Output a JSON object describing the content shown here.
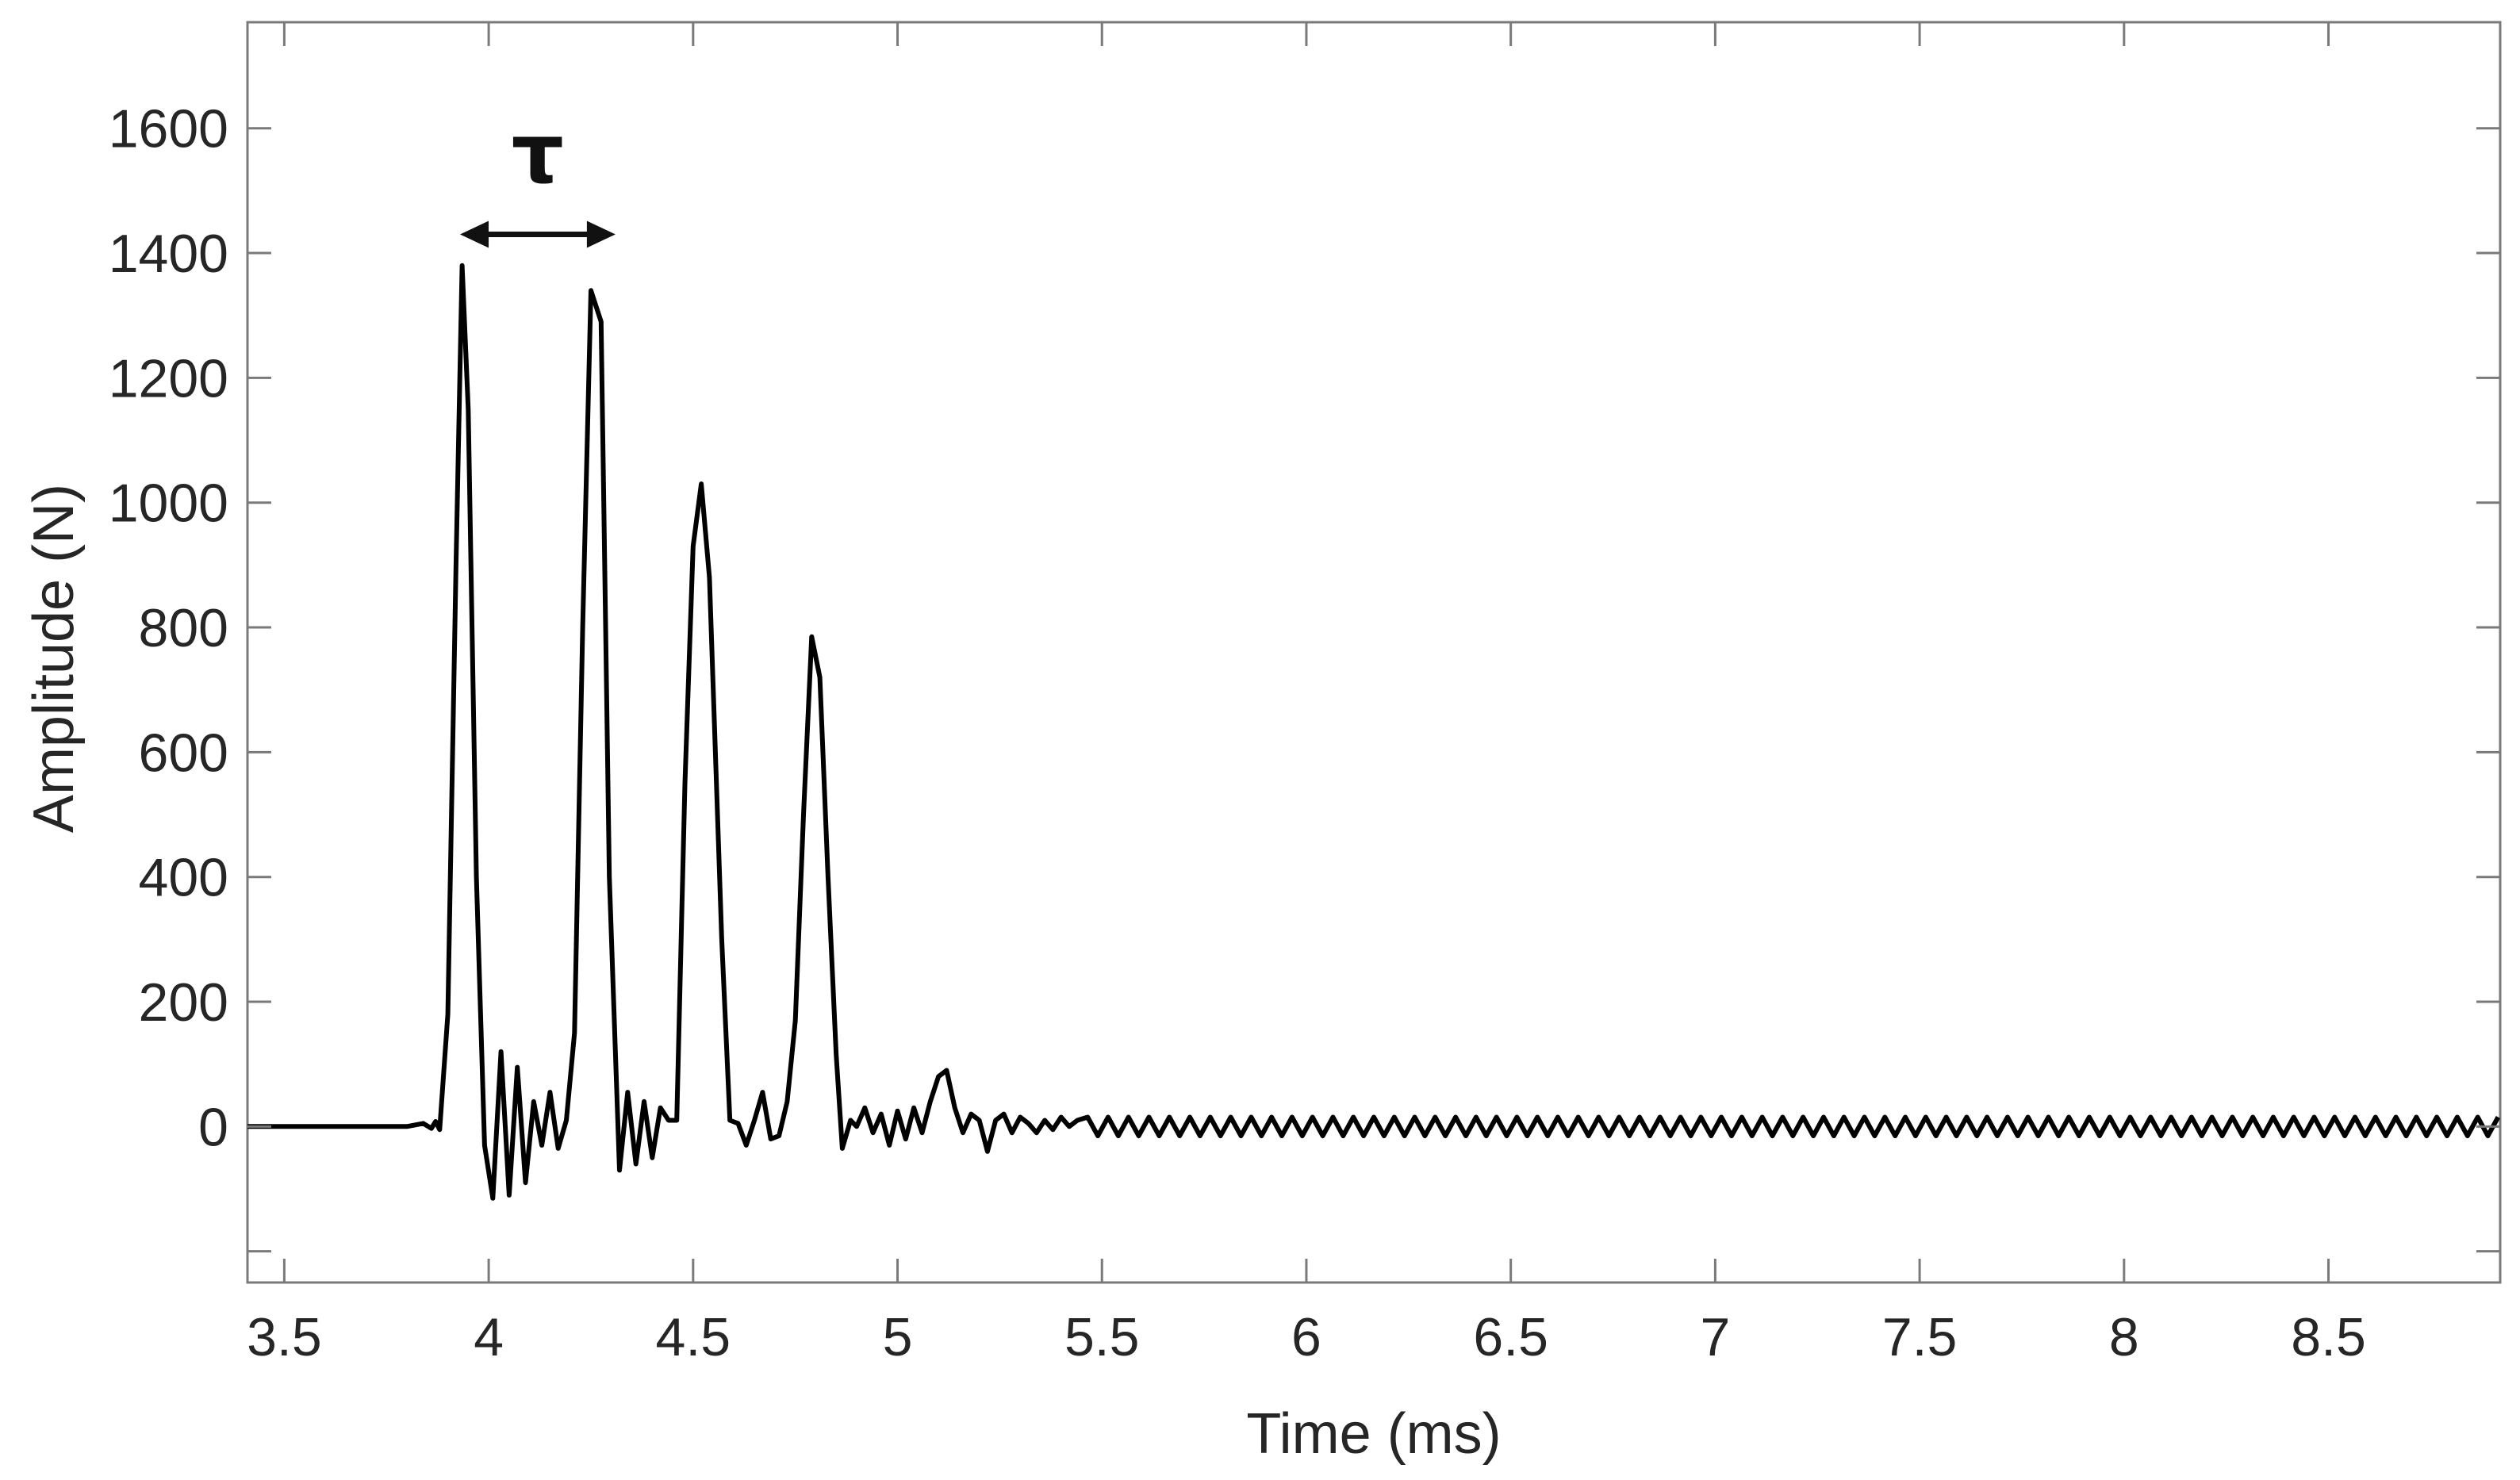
{
  "chart_data": {
    "type": "line",
    "title": "",
    "xlabel": "Time (ms)",
    "ylabel": "Amplitude (N)",
    "xlim": [
      3.41,
      8.92
    ],
    "ylim": [
      -250,
      1770
    ],
    "xticks": [
      3.5,
      4,
      4.5,
      5,
      5.5,
      6,
      6.5,
      7,
      7.5,
      8,
      8.5
    ],
    "xtick_labels": [
      "3.5",
      "4",
      "4.5",
      "5",
      "5.5",
      "6",
      "6.5",
      "7",
      "7.5",
      "8",
      "8.5"
    ],
    "yticks": [
      -200,
      0,
      200,
      400,
      600,
      800,
      1000,
      1200,
      1400,
      1600
    ],
    "ytick_labels": [
      "",
      "0",
      "200",
      "400",
      "600",
      "800",
      "1000",
      "1200",
      "1400",
      "1600"
    ],
    "grid": false,
    "legend": "none",
    "line_color": "#000000",
    "series": [
      {
        "x": [
          3.41,
          3.5,
          3.6,
          3.7,
          3.8,
          3.84,
          3.86,
          3.87,
          3.88,
          3.9,
          3.92,
          3.935,
          3.95,
          3.97,
          3.99,
          4.01,
          4.03,
          4.05,
          4.07,
          4.09,
          4.11,
          4.13,
          4.15,
          4.17,
          4.19,
          4.21,
          4.23,
          4.25,
          4.275,
          4.295,
          4.32,
          4.34,
          4.36,
          4.38,
          4.4,
          4.42,
          4.44,
          4.46,
          4.48,
          4.5,
          4.52,
          4.54,
          4.57,
          4.59,
          4.61,
          4.63,
          4.65,
          4.67,
          4.69,
          4.71,
          4.73,
          4.75,
          4.77,
          4.79,
          4.81,
          4.83,
          4.85,
          4.865,
          4.885,
          4.9,
          4.92,
          4.94,
          4.96,
          4.98,
          5.0,
          5.02,
          5.04,
          5.06,
          5.08,
          5.1,
          5.12,
          5.14,
          5.16,
          5.18,
          5.2,
          5.22,
          5.24,
          5.26,
          5.28,
          5.3,
          5.32,
          5.34,
          5.36,
          5.38,
          5.4,
          5.42,
          5.44
        ],
        "y": [
          0,
          0,
          0,
          0,
          0,
          5,
          -3,
          8,
          -5,
          180,
          900,
          1380,
          1150,
          400,
          -30,
          -115,
          120,
          -110,
          95,
          -90,
          40,
          -30,
          55,
          -35,
          10,
          150,
          800,
          1340,
          1290,
          400,
          -70,
          55,
          -60,
          40,
          -50,
          30,
          10,
          10,
          550,
          930,
          1030,
          880,
          300,
          10,
          5,
          -30,
          10,
          55,
          -20,
          -15,
          40,
          170,
          500,
          785,
          720,
          400,
          115,
          -35,
          10,
          0,
          30,
          -10,
          20,
          -30,
          25,
          -20,
          30,
          -10,
          40,
          80,
          90,
          30,
          -10,
          20,
          10,
          -40,
          10,
          20,
          -10,
          15,
          5,
          -10,
          10,
          -5,
          15,
          0,
          10
        ],
        "oscillation_tail": {
          "x_start": 5.44,
          "x_end": 8.92,
          "period_ms": 0.05,
          "amplitude": 15
        }
      }
    ],
    "annotations": [
      {
        "text": "τ",
        "type": "double-arrow",
        "x_start": 3.93,
        "x_end": 4.31,
        "y": 1430
      }
    ]
  }
}
